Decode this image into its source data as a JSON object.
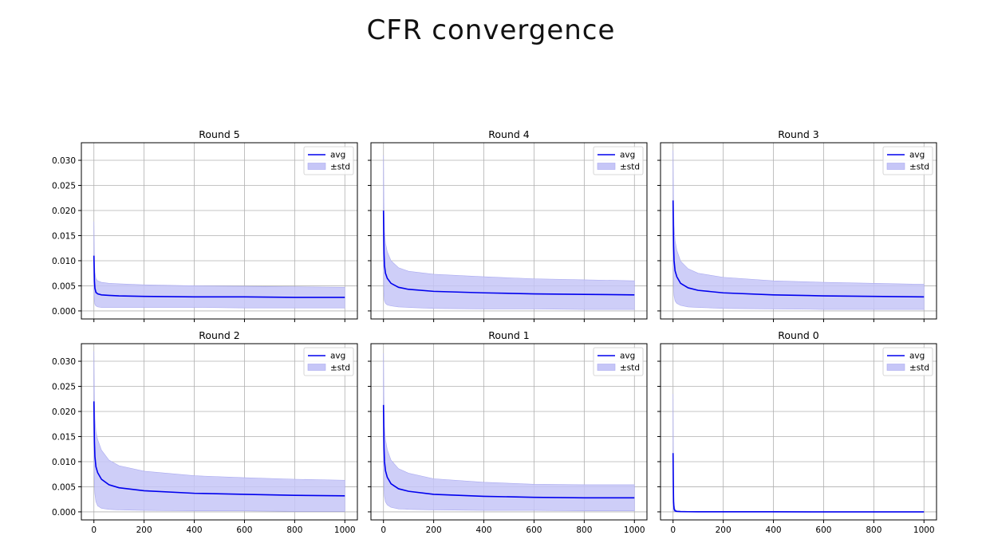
{
  "page": {
    "title": "CFR convergence"
  },
  "colors": {
    "line": "#0000ee",
    "band": "#c6c6f7",
    "band_edge": "#a9a9f0",
    "grid": "#b0b0b0"
  },
  "chart_data": [
    {
      "type": "line",
      "title": "Round 5",
      "x": [
        0,
        1,
        2,
        4,
        8,
        15,
        30,
        60,
        100,
        200,
        400,
        600,
        800,
        1000
      ],
      "series": [
        {
          "name": "avg",
          "values": [
            0.011,
            0.0085,
            0.006,
            0.0045,
            0.0037,
            0.0034,
            0.0032,
            0.0031,
            0.003,
            0.0029,
            0.0028,
            0.0028,
            0.0027,
            0.0027
          ]
        },
        {
          "name": "±std",
          "lower": [
            0.0042,
            0.003,
            0.002,
            0.0013,
            0.001,
            0.0008,
            0.0007,
            0.0007,
            0.0007,
            0.0007,
            0.0007,
            0.0006,
            0.0006,
            0.0006
          ],
          "upper": [
            0.0178,
            0.014,
            0.01,
            0.0077,
            0.0064,
            0.006,
            0.0057,
            0.0055,
            0.0054,
            0.0052,
            0.005,
            0.0049,
            0.0048,
            0.0047
          ]
        }
      ],
      "ylim": [
        -0.0016,
        0.0335
      ],
      "xlim": [
        -50,
        1050
      ],
      "yticks": [
        "0.000",
        "0.005",
        "0.010",
        "0.015",
        "0.020",
        "0.025",
        "0.030"
      ],
      "xticks": [
        "0",
        "200",
        "400",
        "600",
        "800",
        "1000"
      ],
      "grid": true,
      "legend": "top-right"
    },
    {
      "type": "line",
      "title": "Round 4",
      "x": [
        0,
        1,
        2,
        4,
        8,
        15,
        30,
        60,
        100,
        200,
        400,
        600,
        800,
        1000
      ],
      "series": [
        {
          "name": "avg",
          "values": [
            0.02,
            0.015,
            0.0115,
            0.009,
            0.0075,
            0.0065,
            0.0055,
            0.0047,
            0.0043,
            0.0039,
            0.0036,
            0.0034,
            0.0033,
            0.0032
          ]
        },
        {
          "name": "±std",
          "lower": [
            0.009,
            0.005,
            0.003,
            0.002,
            0.0015,
            0.0012,
            0.001,
            0.0008,
            0.0007,
            0.0005,
            0.0004,
            0.0004,
            0.0003,
            0.0003
          ],
          "upper": [
            0.031,
            0.025,
            0.02,
            0.016,
            0.0135,
            0.0118,
            0.01,
            0.0086,
            0.0079,
            0.0073,
            0.0068,
            0.0064,
            0.0062,
            0.006
          ]
        }
      ],
      "ylim": [
        -0.0016,
        0.0335
      ],
      "xlim": [
        -50,
        1050
      ],
      "yticks": [
        "0.000",
        "0.005",
        "0.010",
        "0.015",
        "0.020",
        "0.025",
        "0.030"
      ],
      "xticks": [
        "0",
        "200",
        "400",
        "600",
        "800",
        "1000"
      ],
      "grid": true,
      "legend": "top-right"
    },
    {
      "type": "line",
      "title": "Round 3",
      "x": [
        0,
        1,
        2,
        4,
        8,
        15,
        30,
        60,
        100,
        200,
        400,
        600,
        800,
        1000
      ],
      "series": [
        {
          "name": "avg",
          "values": [
            0.022,
            0.017,
            0.013,
            0.01,
            0.008,
            0.0068,
            0.0055,
            0.0046,
            0.0041,
            0.0036,
            0.0032,
            0.003,
            0.0029,
            0.0028
          ]
        },
        {
          "name": "±std",
          "lower": [
            0.012,
            0.008,
            0.005,
            0.003,
            0.002,
            0.0015,
            0.0011,
            0.0008,
            0.0007,
            0.0005,
            0.0004,
            0.0003,
            0.0003,
            0.0003
          ],
          "upper": [
            0.032,
            0.026,
            0.021,
            0.017,
            0.014,
            0.0121,
            0.0099,
            0.0084,
            0.0075,
            0.0067,
            0.006,
            0.0057,
            0.0055,
            0.0053
          ]
        }
      ],
      "ylim": [
        -0.0016,
        0.0335
      ],
      "xlim": [
        -50,
        1050
      ],
      "yticks": [
        "0.000",
        "0.005",
        "0.010",
        "0.015",
        "0.020",
        "0.025",
        "0.030"
      ],
      "xticks": [
        "0",
        "200",
        "400",
        "600",
        "800",
        "1000"
      ],
      "grid": true,
      "legend": "top-right"
    },
    {
      "type": "line",
      "title": "Round 2",
      "x": [
        0,
        1,
        2,
        4,
        8,
        15,
        30,
        60,
        100,
        200,
        400,
        600,
        800,
        1000
      ],
      "series": [
        {
          "name": "avg",
          "values": [
            0.022,
            0.0175,
            0.014,
            0.011,
            0.009,
            0.0078,
            0.0065,
            0.0054,
            0.0048,
            0.0042,
            0.0037,
            0.0035,
            0.0033,
            0.0032
          ]
        },
        {
          "name": "±std",
          "lower": [
            0.012,
            0.008,
            0.0055,
            0.0035,
            0.002,
            0.0012,
            0.0007,
            0.0005,
            0.0004,
            0.0003,
            0.0002,
            0.0002,
            0.0001,
            0.0001
          ],
          "upper": [
            0.032,
            0.027,
            0.0225,
            0.0185,
            0.016,
            0.0144,
            0.0123,
            0.0103,
            0.0092,
            0.0081,
            0.0072,
            0.0068,
            0.0065,
            0.0063
          ]
        }
      ],
      "ylim": [
        -0.0016,
        0.0335
      ],
      "xlim": [
        -50,
        1050
      ],
      "yticks": [
        "0.000",
        "0.005",
        "0.010",
        "0.015",
        "0.020",
        "0.025",
        "0.030"
      ],
      "xticks": [
        "0",
        "200",
        "400",
        "600",
        "800",
        "1000"
      ],
      "grid": true,
      "legend": "top-right"
    },
    {
      "type": "line",
      "title": "Round 1",
      "x": [
        0,
        1,
        2,
        4,
        8,
        15,
        30,
        60,
        100,
        200,
        400,
        600,
        800,
        1000
      ],
      "series": [
        {
          "name": "avg",
          "values": [
            0.0213,
            0.0165,
            0.0128,
            0.01,
            0.0082,
            0.0069,
            0.0056,
            0.0046,
            0.0041,
            0.0035,
            0.0031,
            0.0029,
            0.0028,
            0.0028
          ]
        },
        {
          "name": "±std",
          "lower": [
            0.011,
            0.007,
            0.0045,
            0.003,
            0.002,
            0.0014,
            0.0009,
            0.0006,
            0.0005,
            0.0004,
            0.0003,
            0.0003,
            0.0002,
            0.0002
          ],
          "upper": [
            0.0316,
            0.026,
            0.0211,
            0.017,
            0.0144,
            0.0124,
            0.0103,
            0.0086,
            0.0077,
            0.0066,
            0.0059,
            0.0055,
            0.0054,
            0.0054
          ]
        }
      ],
      "ylim": [
        -0.0016,
        0.0335
      ],
      "xlim": [
        -50,
        1050
      ],
      "yticks": [
        "0.000",
        "0.005",
        "0.010",
        "0.015",
        "0.020",
        "0.025",
        "0.030"
      ],
      "xticks": [
        "0",
        "200",
        "400",
        "600",
        "800",
        "1000"
      ],
      "grid": true,
      "legend": "top-right"
    },
    {
      "type": "line",
      "title": "Round 0",
      "x": [
        0,
        1,
        2,
        4,
        8,
        15,
        30,
        60,
        100,
        200,
        400,
        600,
        800,
        1000
      ],
      "series": [
        {
          "name": "avg",
          "values": [
            0.0117,
            0.006,
            0.002,
            0.0006,
            0.0002,
            0.0001,
            5e-05,
            3e-05,
            2e-05,
            1e-05,
            1e-05,
            0.0,
            0.0,
            0.0
          ]
        },
        {
          "name": "±std",
          "lower": [
            0.001,
            0.0002,
            0.0001,
            5e-05,
            2e-05,
            1e-05,
            0.0,
            0.0,
            0.0,
            0.0,
            0.0,
            0.0,
            0.0,
            0.0
          ],
          "upper": [
            0.0235,
            0.013,
            0.005,
            0.0014,
            0.0005,
            0.0002,
            0.0001,
            6e-05,
            4e-05,
            2e-05,
            1e-05,
            0.0,
            0.0,
            0.0
          ]
        }
      ],
      "ylim": [
        -0.0016,
        0.0335
      ],
      "xlim": [
        -50,
        1050
      ],
      "yticks": [
        "0.000",
        "0.005",
        "0.010",
        "0.015",
        "0.020",
        "0.025",
        "0.030"
      ],
      "xticks": [
        "0",
        "200",
        "400",
        "600",
        "800",
        "1000"
      ],
      "grid": true,
      "legend": "top-right"
    }
  ]
}
